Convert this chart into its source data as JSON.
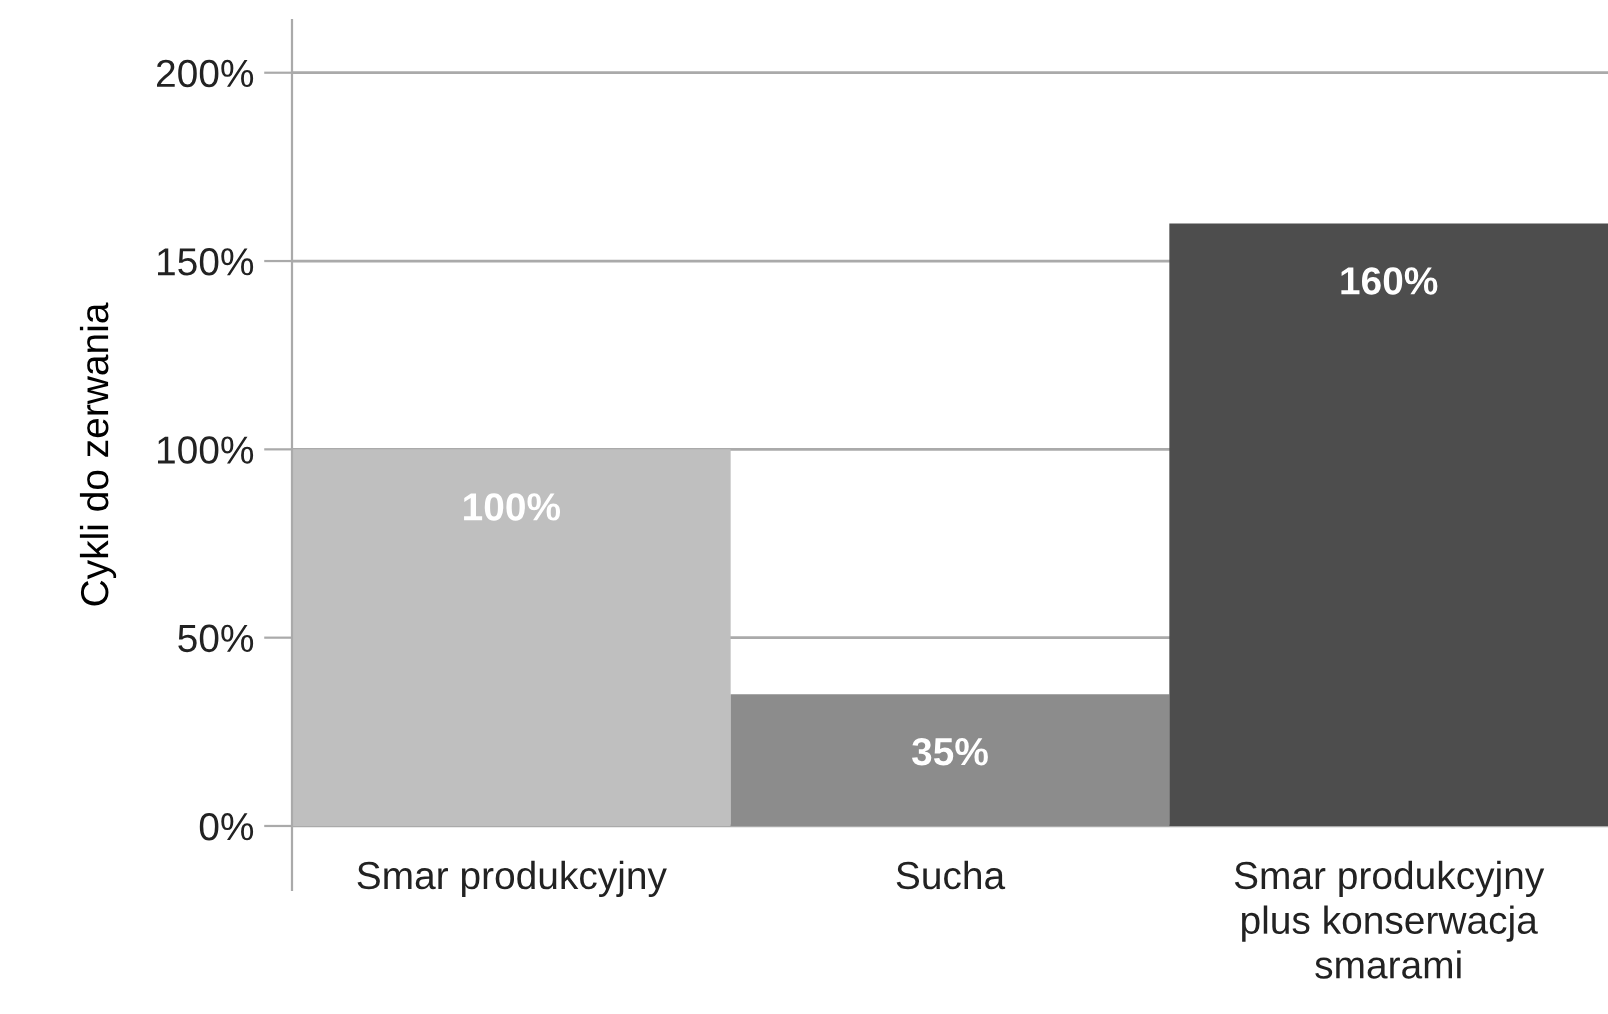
{
  "chart_data": {
    "type": "bar",
    "ylabel": "Cykli do zerwania",
    "categories": [
      "Smar produkcyjny",
      "Sucha",
      "Smar produkcyjny\nplus konserwacja\nsmarami"
    ],
    "values": [
      100,
      35,
      160
    ],
    "colors": [
      "#bfbfbf",
      "#8c8c8c",
      "#4d4d4d"
    ],
    "ylim": [
      -17,
      214
    ],
    "yticks": [
      {
        "value": 0,
        "label": "0%"
      },
      {
        "value": 50,
        "label": "50%"
      },
      {
        "value": 100,
        "label": "100%"
      },
      {
        "value": 150,
        "label": "150%"
      },
      {
        "value": 200,
        "label": "200%"
      }
    ],
    "value_labels": [
      "100%",
      "35%",
      "160%"
    ],
    "grid": "y",
    "legend": false
  }
}
